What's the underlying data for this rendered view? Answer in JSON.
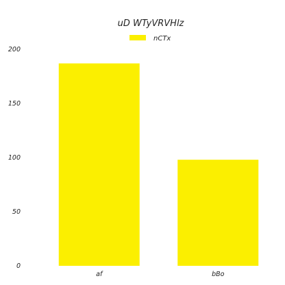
{
  "chart_data": {
    "type": "bar",
    "title": "uD WTyVRVHlz",
    "categories": [
      "af",
      "bBo"
    ],
    "series": [
      {
        "name": "nCTx",
        "values": [
          187,
          98
        ],
        "color": "#fbef00"
      }
    ],
    "ylim": [
      0,
      200
    ],
    "yticks": [
      0,
      50,
      100,
      150,
      200
    ],
    "xlabel": "",
    "ylabel": "",
    "grid": false,
    "legend": "top-center"
  }
}
